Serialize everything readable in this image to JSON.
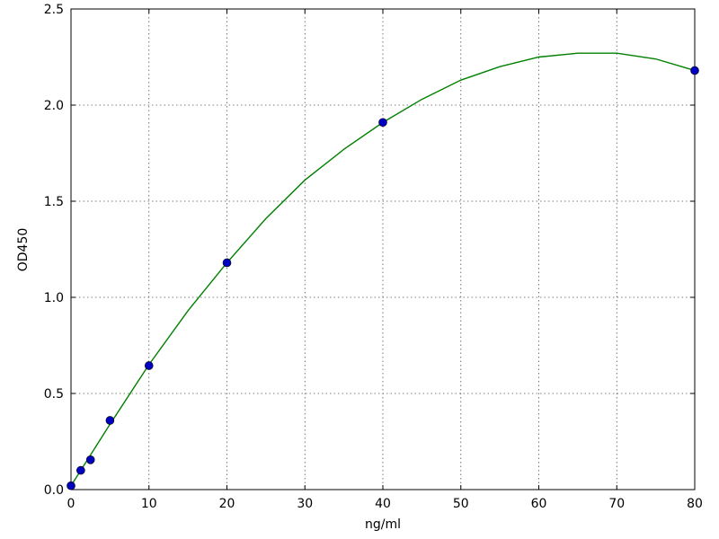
{
  "chart_data": {
    "type": "scatter",
    "xlabel": "ng/ml",
    "ylabel": "OD450",
    "xlim": [
      0,
      80
    ],
    "xticks": [
      0,
      10,
      20,
      30,
      40,
      50,
      60,
      70,
      80
    ],
    "ylim": [
      0,
      2.5
    ],
    "yticks": [
      {
        "value": 0,
        "label": "0.0"
      },
      {
        "value": 0.5,
        "label": "0.5"
      },
      {
        "value": 1,
        "label": "1.0"
      },
      {
        "value": 1.5,
        "label": "1.5"
      },
      {
        "value": 2,
        "label": "2.0"
      },
      {
        "value": 2.5,
        "label": "2.5"
      }
    ],
    "grid": true,
    "series": [
      {
        "type": "scatter",
        "color": "#0000c0",
        "x": [
          0,
          1.25,
          2.5,
          5,
          10,
          20,
          40,
          80
        ],
        "values": [
          0.02,
          0.1,
          0.155,
          0.36,
          0.645,
          1.18,
          1.91,
          2.18
        ]
      },
      {
        "type": "line",
        "color": "#008000",
        "x": [
          0,
          5,
          10,
          15,
          20,
          25,
          30,
          35,
          40,
          45,
          50,
          55,
          60,
          65,
          70,
          75,
          80
        ],
        "values": [
          0.02,
          0.34,
          0.65,
          0.93,
          1.18,
          1.41,
          1.61,
          1.77,
          1.91,
          2.03,
          2.13,
          2.2,
          2.25,
          2.27,
          2.27,
          2.24,
          2.18
        ]
      }
    ]
  }
}
